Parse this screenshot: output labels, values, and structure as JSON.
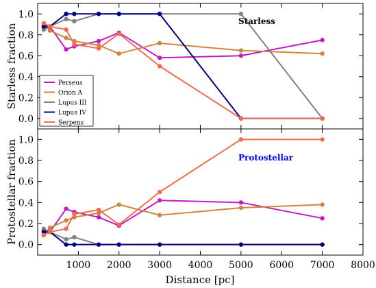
{
  "chart_data": {
    "type": "line",
    "xlabel": "Distance [pc]",
    "xlim": [
      0,
      8000
    ],
    "xticks": [
      1000,
      2000,
      3000,
      4000,
      5000,
      6000,
      7000,
      8000
    ],
    "legend": {
      "placement": "lower-left of top panel",
      "entries": [
        "Perseus",
        "Orion A",
        "Lupus III",
        "Lupus IV",
        "Serpens"
      ]
    },
    "panels": [
      {
        "id": "starless",
        "title": "Starless",
        "title_color": "#000000",
        "ylabel": "Starless fraction",
        "ylim": [
          -0.1,
          1.1
        ],
        "yticks": [
          "0.0",
          "0.2",
          "0.4",
          "0.6",
          "0.8",
          "1.0"
        ],
        "series": [
          {
            "name": "Perseus",
            "color": "#c21bc2",
            "x": [
              150,
              300,
              700,
              900,
              1500,
              2000,
              3000,
              5000,
              7000
            ],
            "y": [
              0.87,
              0.88,
              0.66,
              0.69,
              0.74,
              0.82,
              0.58,
              0.6,
              0.75
            ]
          },
          {
            "name": "Orion A",
            "color": "#cd853f",
            "x": [
              150,
              300,
              700,
              900,
              1500,
              2000,
              3000,
              5000,
              7000
            ],
            "y": [
              0.91,
              0.84,
              0.77,
              0.74,
              0.7,
              0.62,
              0.72,
              0.65,
              0.62
            ]
          },
          {
            "name": "Lupus III",
            "color": "#808080",
            "x": [
              150,
              300,
              700,
              900,
              1500,
              2000,
              3000,
              5000,
              7000
            ],
            "y": [
              0.85,
              0.88,
              0.95,
              0.93,
              1.0,
              1.0,
              1.0,
              1.0,
              0.0
            ]
          },
          {
            "name": "Lupus IV",
            "color": "#000080",
            "x": [
              150,
              300,
              700,
              900,
              1500,
              2000,
              3000,
              5000,
              7000
            ],
            "y": [
              0.88,
              0.88,
              1.0,
              1.0,
              1.0,
              1.0,
              1.0,
              0.0,
              0.0
            ]
          },
          {
            "name": "Serpens",
            "color": "#f26b4f",
            "x": [
              150,
              300,
              700,
              900,
              1500,
              2000,
              3000,
              5000,
              7000
            ],
            "y": [
              0.91,
              0.88,
              0.85,
              0.71,
              0.67,
              0.81,
              0.5,
              0.0,
              0.0
            ]
          }
        ]
      },
      {
        "id": "protostellar",
        "title": "Protostellar",
        "title_color": "#0000ff",
        "ylabel": "Protostellar fraction",
        "ylim": [
          -0.1,
          1.1
        ],
        "yticks": [
          "0.0",
          "0.2",
          "0.4",
          "0.6",
          "0.8",
          "1.0"
        ],
        "series": [
          {
            "name": "Perseus",
            "color": "#c21bc2",
            "x": [
              150,
              300,
              700,
              900,
              1500,
              2000,
              3000,
              5000,
              7000
            ],
            "y": [
              0.13,
              0.12,
              0.34,
              0.31,
              0.26,
              0.18,
              0.42,
              0.4,
              0.25
            ]
          },
          {
            "name": "Orion A",
            "color": "#cd853f",
            "x": [
              150,
              300,
              700,
              900,
              1500,
              2000,
              3000,
              5000,
              7000
            ],
            "y": [
              0.09,
              0.16,
              0.23,
              0.26,
              0.3,
              0.38,
              0.28,
              0.35,
              0.38
            ]
          },
          {
            "name": "Lupus III",
            "color": "#808080",
            "x": [
              150,
              300,
              700,
              900,
              1500,
              2000,
              3000,
              5000,
              7000
            ],
            "y": [
              0.15,
              0.12,
              0.05,
              0.07,
              0.0,
              0.0,
              0.0,
              0.0,
              0.0
            ]
          },
          {
            "name": "Lupus IV",
            "color": "#000080",
            "x": [
              150,
              300,
              700,
              900,
              1500,
              2000,
              3000,
              5000,
              7000
            ],
            "y": [
              0.12,
              0.12,
              0.0,
              0.0,
              0.0,
              0.0,
              0.0,
              0.0,
              0.0
            ]
          },
          {
            "name": "Serpens",
            "color": "#f26b4f",
            "x": [
              150,
              300,
              700,
              900,
              1500,
              2000,
              3000,
              5000,
              7000
            ],
            "y": [
              0.09,
              0.12,
              0.15,
              0.29,
              0.33,
              0.19,
              0.5,
              1.0,
              1.0
            ]
          }
        ]
      }
    ]
  }
}
